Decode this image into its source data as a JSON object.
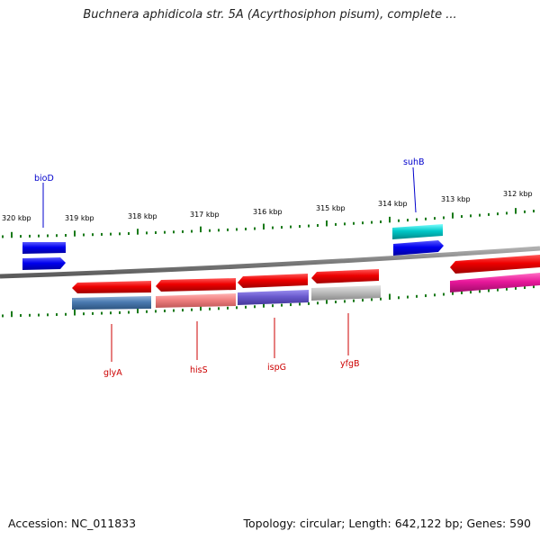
{
  "title": "Buchnera aphidicola str. 5A (Acyrthosiphon pisum), complete ...",
  "footer": {
    "accession": "Accession: NC_011833",
    "summary": "Topology: circular; Length: 642,122 bp; Genes: 590"
  },
  "ruler_labels": [
    "320 kbp",
    "319 kbp",
    "318 kbp",
    "317 kbp",
    "316 kbp",
    "315 kbp",
    "314 kbp",
    "313 kbp",
    "312 kbp"
  ],
  "genes": {
    "bioD": "bioD",
    "suhB": "suhB",
    "glyA": "glyA",
    "hisS": "hisS",
    "ispG": "ispG",
    "yfgB": "yfgB"
  },
  "colors": {
    "backbone": "#808080",
    "tick": "#1a7a1a",
    "cds_forward": "#0000ee",
    "cds_reverse": "#ee0000",
    "label_forward": "#0000cc",
    "label_reverse": "#cc0000",
    "suhB_feature": "#00c8c8",
    "glyA_feature": "#4a7ab0",
    "hisS_feature": "#f08080",
    "ispG_feature": "#6a5acd",
    "yfgB_feature": "#bdbdbd",
    "right_feature": "#e8189a"
  }
}
